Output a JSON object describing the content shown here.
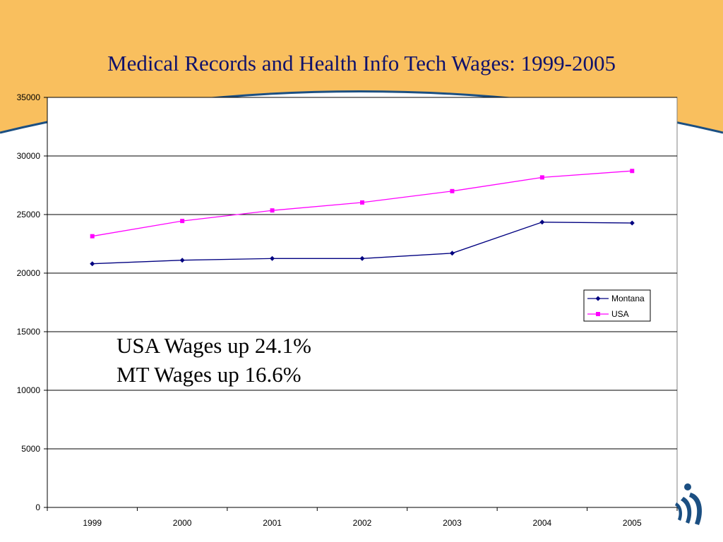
{
  "slide": {
    "title": "Medical Records and Health Info Tech Wages: 1999-2005",
    "colors": {
      "header_band": "#f9bf5e",
      "header_curve": "#1b4f82",
      "title_text": "#10126b",
      "logo": "#1b4f82"
    },
    "logo_icon": "person-swoosh-logo"
  },
  "chart_data": {
    "type": "line",
    "title": "",
    "xlabel": "",
    "ylabel": "",
    "categories": [
      "1999",
      "2000",
      "2001",
      "2002",
      "2003",
      "2004",
      "2005"
    ],
    "ylim": [
      0,
      35000
    ],
    "yticks": [
      0,
      5000,
      10000,
      15000,
      20000,
      25000,
      30000,
      35000
    ],
    "grid": "horizontal",
    "legend_position": "right",
    "series": [
      {
        "name": "Montana",
        "color": "#000080",
        "marker": "diamond",
        "values": [
          20800,
          21100,
          21250,
          21250,
          21700,
          24350,
          24280
        ]
      },
      {
        "name": "USA",
        "color": "#ff00ff",
        "marker": "square",
        "values": [
          23150,
          24450,
          25350,
          26030,
          27000,
          28170,
          28720
        ]
      }
    ],
    "annotations": [
      "USA Wages up 24.1%",
      "MT Wages up 16.6%"
    ]
  }
}
